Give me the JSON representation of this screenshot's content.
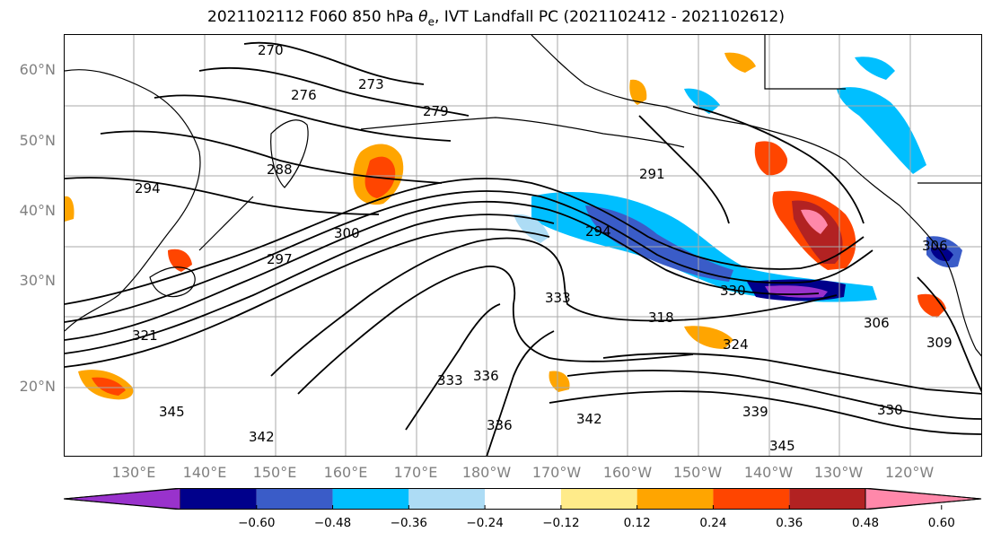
{
  "title": "2021102112 F060 850 hPa θe, IVT Landfall PC (2021102412 - 2021102612)",
  "title_parts": {
    "prefix": "2021102112 F060 850 hPa ",
    "theta": "θ",
    "sub": "e",
    "suffix": ", IVT Landfall PC (2021102412 - 2021102612)"
  },
  "latitude_labels": [
    "60°N",
    "50°N",
    "40°N",
    "30°N",
    "20°N"
  ],
  "longitude_labels": [
    "130°E",
    "140°E",
    "150°E",
    "160°E",
    "170°E",
    "180°W",
    "170°W",
    "160°W",
    "150°W",
    "140°W",
    "130°W",
    "120°W"
  ],
  "colorbar": {
    "ticks": [
      "−0.60",
      "−0.48",
      "−0.36",
      "−0.24",
      "−0.12",
      "0.12",
      "0.24",
      "0.36",
      "0.48",
      "0.60"
    ],
    "colors": [
      "#9932CC",
      "#00008B",
      "#3A5CC8",
      "#00BFFF",
      "#ADDCF5",
      "#FFFFFF",
      "#FFEB8A",
      "#FFA500",
      "#FF4500",
      "#B22222",
      "#FF88AA"
    ]
  },
  "contour_labels": [
    "270",
    "273",
    "276",
    "279",
    "288",
    "291",
    "294",
    "294",
    "297",
    "300",
    "306",
    "306",
    "309",
    "318",
    "321",
    "324",
    "330",
    "330",
    "333",
    "333",
    "336",
    "336",
    "339",
    "342",
    "342",
    "345",
    "345"
  ],
  "colors": {
    "grid": "#aaaaaa",
    "contour": "#000000",
    "axis_label": "#808080"
  }
}
